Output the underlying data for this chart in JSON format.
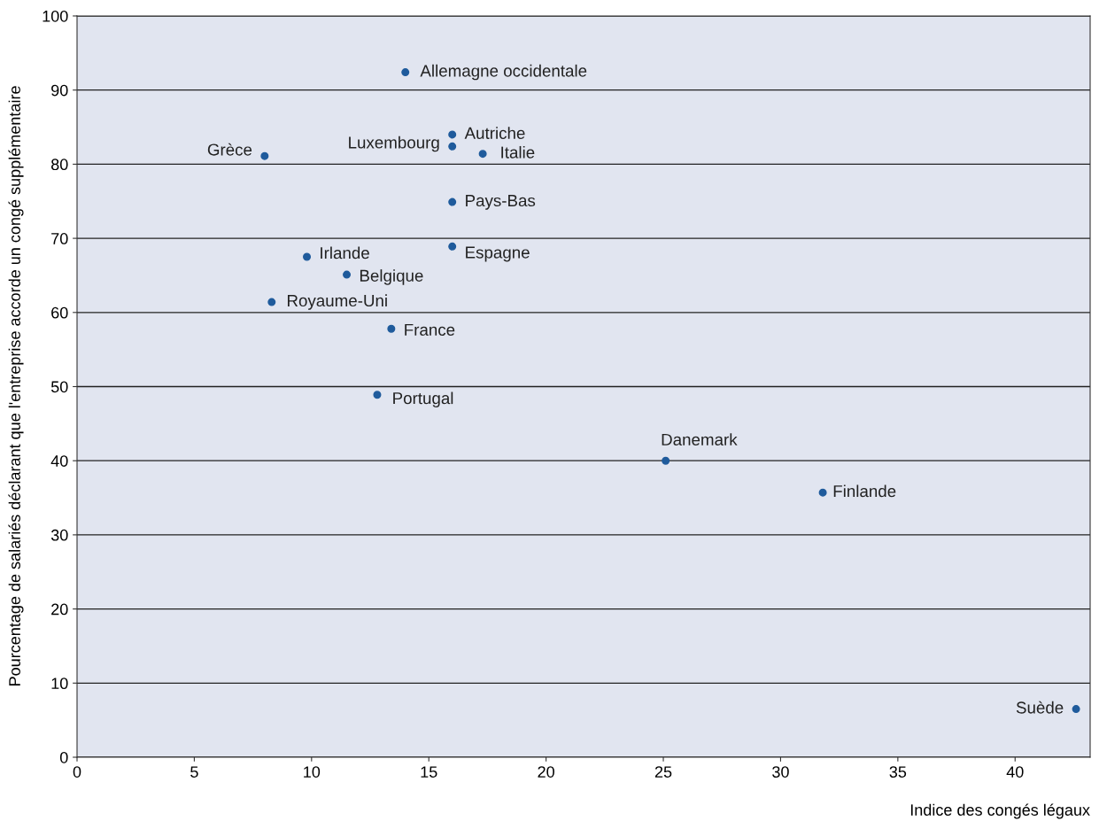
{
  "chart_data": {
    "type": "scatter",
    "xlabel": "Indice des congés légaux",
    "ylabel": "Pourcentage de salariés déclarant que l'entreprise accorde un congé supplémentaire",
    "x": [
      14,
      16,
      16,
      17.3,
      8,
      16,
      16,
      9.8,
      11.5,
      8.3,
      13.4,
      12.8,
      25.1,
      31.8,
      42.6
    ],
    "series": [
      {
        "color": "#1f5b9c",
        "values": [
          92.4,
          84,
          82.4,
          81.4,
          81.1,
          74.9,
          68.9,
          67.5,
          65.1,
          61.4,
          57.8,
          48.9,
          40,
          35.7,
          6.5
        ]
      }
    ],
    "annotations": [
      {
        "text": "Allemagne occidentale",
        "x": 14,
        "y": 92.4
      },
      {
        "text": "Autriche",
        "x": 16,
        "y": 84
      },
      {
        "text": "Luxembourg",
        "x": 16,
        "y": 82.4
      },
      {
        "text": "Italie",
        "x": 17.3,
        "y": 81.4
      },
      {
        "text": "Grèce",
        "x": 8,
        "y": 81.1
      },
      {
        "text": "Pays-Bas",
        "x": 16,
        "y": 74.9
      },
      {
        "text": "Espagne",
        "x": 16,
        "y": 68.9
      },
      {
        "text": "Irlande",
        "x": 9.8,
        "y": 67.5
      },
      {
        "text": "Belgique",
        "x": 11.5,
        "y": 65.1
      },
      {
        "text": "Royaume-Uni",
        "x": 8.3,
        "y": 61.4
      },
      {
        "text": "France",
        "x": 13.4,
        "y": 57.8
      },
      {
        "text": "Portugal",
        "x": 12.8,
        "y": 48.9
      },
      {
        "text": "Danemark",
        "x": 25.1,
        "y": 40
      },
      {
        "text": "Finlande",
        "x": 31.8,
        "y": 35.7
      },
      {
        "text": "Suède",
        "x": 42.6,
        "y": 6.5
      }
    ],
    "xlim": [
      0,
      43.2
    ],
    "ylim": [
      0,
      100
    ],
    "xticks": [
      0,
      5,
      10,
      15,
      20,
      25,
      30,
      35,
      40
    ],
    "yticks": [
      0,
      10,
      20,
      30,
      40,
      50,
      60,
      70,
      80,
      90,
      100
    ],
    "grid": "y",
    "marker": "circle",
    "legend": false
  }
}
